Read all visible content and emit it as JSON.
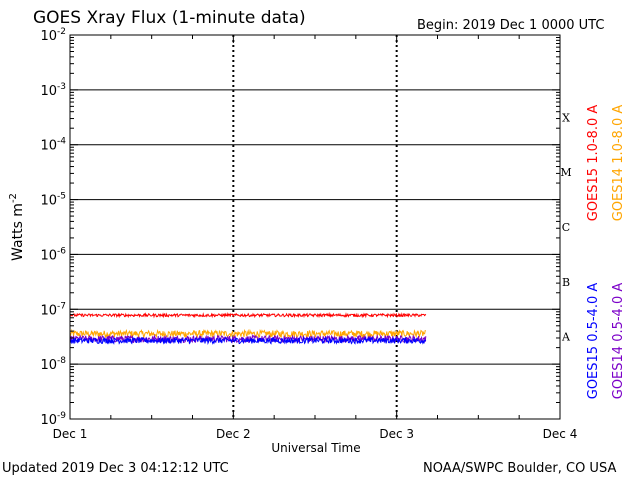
{
  "header": {
    "title": "GOES Xray Flux (1-minute data)",
    "begin": "Begin:  2019 Dec 1 0000 UTC"
  },
  "footer": {
    "updated": "Updated 2019 Dec  3 04:12:12 UTC",
    "credit": "NOAA/SWPC Boulder, CO USA"
  },
  "chart_data": {
    "type": "line",
    "title": "GOES Xray Flux (1-minute data)",
    "xlabel": "Universal Time",
    "ylabel": "Watts m-2",
    "y_scale": "log",
    "ylim": [
      1e-09,
      0.01
    ],
    "xlim_days": [
      0,
      3
    ],
    "x_ticks": [
      "Dec 1",
      "Dec 2",
      "Dec 3",
      "Dec 4"
    ],
    "y_ticks": [
      {
        "base": "10",
        "exp": "-2"
      },
      {
        "base": "10",
        "exp": "-3"
      },
      {
        "base": "10",
        "exp": "-4"
      },
      {
        "base": "10",
        "exp": "-5"
      },
      {
        "base": "10",
        "exp": "-6"
      },
      {
        "base": "10",
        "exp": "-7"
      },
      {
        "base": "10",
        "exp": "-8"
      },
      {
        "base": "10",
        "exp": "-9"
      }
    ],
    "flare_classes": [
      {
        "label": "X",
        "value": 0.0001
      },
      {
        "label": "M",
        "value": 1e-05
      },
      {
        "label": "C",
        "value": 1e-06
      },
      {
        "label": "B",
        "value": 1e-07
      },
      {
        "label": "A",
        "value": 1e-08
      }
    ],
    "data_end_day": 2.18,
    "series": [
      {
        "name": "GOES15 1.0-8.0 A",
        "color": "#ff0000",
        "mean": 7.8e-08,
        "noise": 0.03
      },
      {
        "name": "GOES14 1.0-8.0 A",
        "color": "#ffa500",
        "mean": 3.6e-08,
        "noise": 0.07
      },
      {
        "name": "GOES15 0.5-4.0 A",
        "color": "#0000ff",
        "mean": 2.7e-08,
        "noise": 0.06
      },
      {
        "name": "GOES14 0.5-4.0 A",
        "color": "#7b00c8",
        "mean": 2.9e-08,
        "noise": 0.07
      }
    ]
  }
}
